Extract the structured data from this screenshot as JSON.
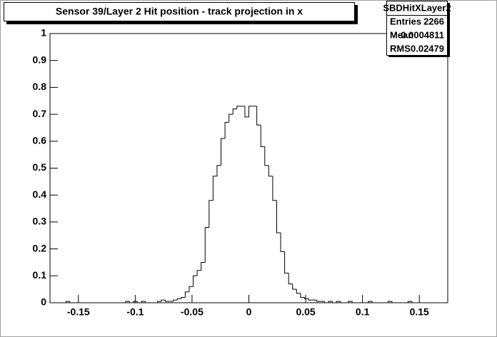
{
  "chart_data": {
    "type": "histogram",
    "title": "Sensor 39/Layer 2 Hit position - track projection in x",
    "color": "#000000",
    "bins": [
      -0.175,
      -0.1715,
      -0.168,
      -0.1645,
      -0.161,
      -0.1575,
      -0.154,
      -0.1505,
      -0.147,
      -0.1435,
      -0.14,
      -0.1365,
      -0.133,
      -0.1295,
      -0.126,
      -0.1225,
      -0.119,
      -0.1155,
      -0.112,
      -0.1085,
      -0.105,
      -0.1015,
      -0.098,
      -0.0945,
      -0.091,
      -0.0875,
      -0.084,
      -0.0805,
      -0.077,
      -0.0735,
      -0.07,
      -0.0665,
      -0.063,
      -0.0595,
      -0.056,
      -0.0525,
      -0.049,
      -0.0455,
      -0.042,
      -0.0385,
      -0.035,
      -0.0315,
      -0.028,
      -0.0245,
      -0.021,
      -0.0175,
      -0.014,
      -0.0105,
      -0.007,
      -0.0035,
      0,
      0.0035,
      0.007,
      0.0105,
      0.014,
      0.0175,
      0.021,
      0.0245,
      0.028,
      0.0315,
      0.035,
      0.0385,
      0.042,
      0.0455,
      0.049,
      0.0525,
      0.056,
      0.0595,
      0.063,
      0.0665,
      0.07,
      0.0735,
      0.077,
      0.0805,
      0.084,
      0.0875,
      0.091,
      0.0945,
      0.098,
      0.1015,
      0.105,
      0.1085,
      0.112,
      0.1155,
      0.119,
      0.1225,
      0.126,
      0.1295,
      0.133,
      0.1365,
      0.14,
      0.1435,
      0.147,
      0.1505,
      0.154,
      0.1575,
      0.161,
      0.1645,
      0.168,
      0.1715,
      0.175
    ],
    "counts": [
      0,
      0,
      0,
      0,
      0.005,
      0,
      0,
      0,
      0,
      0,
      0,
      0,
      0,
      0,
      0,
      0,
      0,
      0,
      0,
      0.005,
      0,
      0.005,
      0,
      0.005,
      0,
      0,
      0,
      0.005,
      0.01,
      0.005,
      0.005,
      0.01,
      0.015,
      0.02,
      0.04,
      0.06,
      0.1,
      0.12,
      0.15,
      0.28,
      0.38,
      0.47,
      0.51,
      0.61,
      0.67,
      0.7,
      0.72,
      0.73,
      0.73,
      0.69,
      0.73,
      0.73,
      0.66,
      0.58,
      0.51,
      0.47,
      0.38,
      0.26,
      0.19,
      0.11,
      0.07,
      0.05,
      0.035,
      0.02,
      0.015,
      0.01,
      0.01,
      0.005,
      0.005,
      0,
      0.005,
      0,
      0.005,
      0,
      0,
      0.005,
      0,
      0,
      0,
      0,
      0.005,
      0,
      0,
      0,
      0,
      0.005,
      0,
      0,
      0,
      0,
      0.005,
      0,
      0,
      0,
      0,
      0,
      0,
      0,
      0,
      0
    ],
    "xlim": [
      -0.175,
      0.175
    ],
    "ylim": [
      0,
      1
    ],
    "xticks": [
      -0.15,
      -0.1,
      -0.05,
      0,
      0.05,
      0.1,
      0.15
    ],
    "yticks": [
      0,
      0.1,
      0.2,
      0.3,
      0.4,
      0.5,
      0.6,
      0.7,
      0.8,
      0.9,
      1
    ],
    "stats": {
      "name": "SBDHitXLayer2",
      "rows": [
        [
          "Entries",
          2266
        ],
        [
          "Mean",
          0.0004811
        ],
        [
          "RMS",
          0.02479
        ]
      ]
    }
  }
}
